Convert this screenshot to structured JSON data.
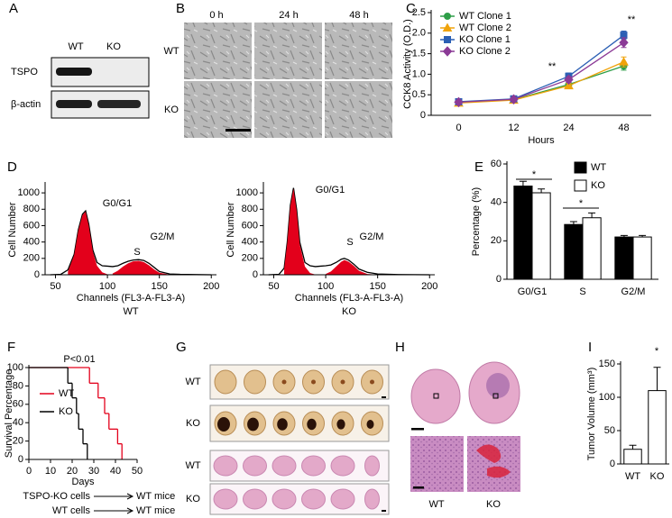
{
  "panel_labels": [
    "A",
    "B",
    "C",
    "D",
    "E",
    "F",
    "G",
    "H",
    "I"
  ],
  "blot": {
    "lanes": [
      "WT",
      "KO"
    ],
    "proteins": [
      "TSPO",
      "β-actin"
    ]
  },
  "micrographs": {
    "times": [
      "0 h",
      "24 h",
      "48 h"
    ],
    "genotypes": [
      "WT",
      "KO"
    ]
  },
  "chart_data": [
    {
      "type": "line",
      "y_label": "CCK8 Activity (O.D.)",
      "x_label": "Hours",
      "categories": [
        "0",
        "12",
        "24",
        "48"
      ],
      "series": [
        {
          "name": "WT Clone 1",
          "color": "#2e9e48",
          "marker": "circle",
          "values": [
            0.32,
            0.38,
            0.75,
            1.2
          ],
          "errors": [
            0.03,
            0.03,
            0.06,
            0.1
          ]
        },
        {
          "name": "WT Clone 2",
          "color": "#f0a30a",
          "marker": "triangle",
          "values": [
            0.3,
            0.37,
            0.72,
            1.3
          ],
          "errors": [
            0.03,
            0.03,
            0.06,
            0.12
          ]
        },
        {
          "name": "KO Clone 1",
          "color": "#2b5fb4",
          "marker": "square",
          "values": [
            0.33,
            0.4,
            0.95,
            1.95
          ],
          "errors": [
            0.03,
            0.03,
            0.08,
            0.1
          ]
        },
        {
          "name": "KO Clone 2",
          "color": "#8b3a96",
          "marker": "diamond",
          "values": [
            0.32,
            0.39,
            0.87,
            1.77
          ],
          "errors": [
            0.03,
            0.03,
            0.07,
            0.12
          ]
        }
      ],
      "ylim": [
        0,
        2.5
      ],
      "yticks": [
        0,
        0.5,
        {
          "value": 1,
          "label": "1.0"
        },
        1.5,
        {
          "value": 2,
          "label": "2.0"
        },
        2.5
      ],
      "legend": "upper left",
      "annotations": [
        "**",
        "**"
      ]
    },
    {
      "type": "line",
      "y_label": "Cell Number",
      "x_label": "Channels (FL3-A-FL3-A)",
      "subtitle": "WT",
      "x": [
        45,
        55,
        62,
        68,
        72,
        76,
        79,
        82,
        86,
        90,
        95,
        100,
        105,
        110,
        115,
        120,
        125,
        130,
        135,
        140,
        145,
        150,
        160,
        170,
        185,
        200
      ],
      "series": [
        {
          "color": "#000000",
          "values": [
            0,
            5,
            60,
            250,
            550,
            740,
            780,
            620,
            300,
            150,
            110,
            105,
            100,
            110,
            140,
            165,
            180,
            185,
            175,
            140,
            90,
            40,
            10,
            5,
            2,
            0
          ]
        },
        {
          "color": "#e3001b",
          "fill": true,
          "values": [
            null,
            null,
            40,
            240,
            540,
            730,
            770,
            600,
            280,
            110,
            30,
            5,
            null,
            null,
            null,
            null,
            null,
            null,
            null,
            null,
            null,
            null,
            null,
            null,
            null,
            null
          ]
        },
        {
          "color": "#e3001b",
          "fill": true,
          "values": [
            null,
            null,
            null,
            null,
            null,
            null,
            null,
            null,
            null,
            null,
            null,
            null,
            15,
            50,
            100,
            140,
            165,
            170,
            155,
            115,
            65,
            25,
            3,
            null,
            null,
            null
          ]
        }
      ],
      "xlim": [
        40,
        205
      ],
      "xticks": [
        50,
        100,
        150,
        200
      ],
      "ylim": [
        0,
        1100
      ],
      "yticks": [
        0,
        200,
        400,
        600,
        800,
        1000
      ],
      "annotations": [
        "G0/G1",
        "S",
        "G2/M"
      ]
    },
    {
      "type": "line",
      "y_label": "Cell Number",
      "x_label": "Channels (FL3-A-FL3-A)",
      "subtitle": "KO",
      "x": [
        45,
        55,
        60,
        63,
        66,
        69,
        72,
        75,
        80,
        85,
        90,
        95,
        100,
        105,
        110,
        115,
        118,
        122,
        127,
        132,
        140,
        150,
        170,
        200
      ],
      "series": [
        {
          "color": "#000000",
          "values": [
            0,
            5,
            80,
            400,
            850,
            1060,
            800,
            400,
            150,
            110,
            100,
            105,
            110,
            120,
            150,
            190,
            200,
            180,
            130,
            70,
            30,
            10,
            3,
            0
          ]
        },
        {
          "color": "#e3001b",
          "fill": true,
          "values": [
            null,
            null,
            70,
            390,
            840,
            1050,
            780,
            370,
            100,
            20,
            3,
            null,
            null,
            null,
            null,
            null,
            null,
            null,
            null,
            null,
            null,
            null,
            null,
            null
          ]
        },
        {
          "color": "#e3001b",
          "fill": true,
          "values": [
            null,
            null,
            null,
            null,
            null,
            null,
            null,
            null,
            null,
            null,
            null,
            null,
            10,
            40,
            100,
            160,
            180,
            160,
            110,
            50,
            10,
            2,
            null,
            null
          ]
        }
      ],
      "xlim": [
        40,
        205
      ],
      "xticks": [
        50,
        100,
        150,
        200
      ],
      "ylim": [
        0,
        1100
      ],
      "yticks": [
        0,
        200,
        400,
        600,
        800,
        1000
      ],
      "annotations": [
        "G0/G1",
        "S",
        "G2/M"
      ]
    },
    {
      "type": "bar",
      "y_label": "Percentage (%)",
      "categories": [
        "G0/G1",
        "S",
        "G2/M"
      ],
      "series": [
        {
          "name": "WT",
          "color": "#000000",
          "values": [
            48.5,
            28.5,
            22
          ],
          "errors": [
            2.5,
            1.5,
            0.8
          ]
        },
        {
          "name": "KO",
          "color": "#ffffff",
          "values": [
            45,
            32,
            22
          ],
          "errors": [
            2,
            2.5,
            0.8
          ]
        }
      ],
      "ylim": [
        0,
        60
      ],
      "yticks": [
        0,
        20,
        40,
        60
      ],
      "legend": "upper right",
      "annotations": [
        "*",
        "*"
      ]
    },
    {
      "type": "step",
      "title": "P<0.01",
      "y_label": "Survival Percentage",
      "x_label": "Days",
      "series": [
        {
          "name": "WT",
          "color": "#e3001b",
          "x": [
            0,
            28,
            32,
            35,
            37,
            41,
            43
          ],
          "values": [
            100,
            83,
            67,
            50,
            33,
            17,
            0
          ]
        },
        {
          "name": "KO",
          "color": "#000000",
          "x": [
            0,
            18,
            20,
            22,
            23,
            25,
            27
          ],
          "values": [
            100,
            83,
            67,
            50,
            33,
            17,
            0
          ]
        }
      ],
      "xlim": [
        0,
        50
      ],
      "xticks": [
        0,
        10,
        20,
        30,
        40,
        50
      ],
      "ylim": [
        0,
        100
      ],
      "yticks": [
        0,
        20,
        40,
        60,
        80,
        100
      ],
      "legend": "center left",
      "transplants": [
        {
          "cells": "TSPO-KO cells",
          "host": "WT mice"
        },
        {
          "cells": "WT cells",
          "host": "WT mice"
        }
      ]
    },
    {
      "type": "bar",
      "y_label": "Tumor Volume (mm³)",
      "categories": [
        "WT",
        "KO"
      ],
      "values": [
        22,
        110
      ],
      "errors": [
        6,
        35
      ],
      "color": "#ffffff",
      "ylim": [
        0,
        150
      ],
      "yticks": [
        0,
        50,
        100,
        150
      ],
      "annotations": [
        "*"
      ]
    }
  ],
  "tumors": {
    "rows": [
      "WT",
      "KO",
      "WT",
      "KO"
    ]
  },
  "histology": {
    "columns": [
      "WT",
      "KO"
    ]
  }
}
